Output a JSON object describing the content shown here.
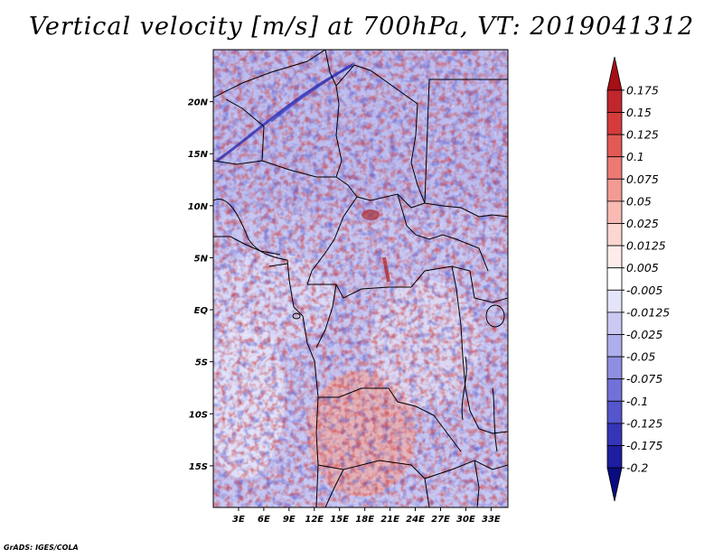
{
  "title": "Vertical velocity [m/s] at 700hPa, VT: 2019041312",
  "credit": "GrADS: IGES/COLA",
  "map": {
    "lon_range": [
      0,
      35
    ],
    "lat_range": [
      -19,
      25
    ],
    "x_ticks": [
      "3E",
      "6E",
      "9E",
      "12E",
      "15E",
      "18E",
      "21E",
      "24E",
      "27E",
      "30E",
      "33E"
    ],
    "y_ticks": [
      "20N",
      "15N",
      "10N",
      "5N",
      "EQ",
      "5S",
      "10S",
      "15S"
    ]
  },
  "colorbar": {
    "labels": [
      "0.175",
      "0.15",
      "0.125",
      "0.1",
      "0.075",
      "0.05",
      "0.025",
      "0.0125",
      "0.005",
      "-0.005",
      "-0.0125",
      "-0.025",
      "-0.05",
      "-0.075",
      "-0.1",
      "-0.125",
      "-0.175",
      "-0.2"
    ],
    "colors": [
      "#a50f15",
      "#c0272d",
      "#d63b3b",
      "#e35a55",
      "#ec7a73",
      "#f39b93",
      "#f8bab2",
      "#fcd6d0",
      "#feecea",
      "#ffffff",
      "#e4e4fa",
      "#c9c9f3",
      "#aeaeec",
      "#8f8fe2",
      "#7171d8",
      "#5555cc",
      "#3535b8",
      "#1e1ea0",
      "#0b0b80"
    ]
  }
}
